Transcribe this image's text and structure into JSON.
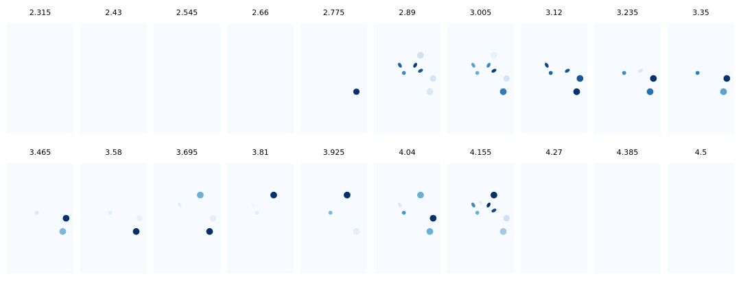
{
  "chart_data": {
    "type": "scatter",
    "colormap": "Blues",
    "background_color": "#f7fbff",
    "xlim": [
      0,
      1
    ],
    "ylim": [
      0,
      1
    ],
    "axes_visible": false,
    "grid": false,
    "layout": {
      "rows": 2,
      "cols": 10
    },
    "panels": [
      {
        "title": "2.315",
        "points": []
      },
      {
        "title": "2.43",
        "points": []
      },
      {
        "title": "2.545",
        "points": []
      },
      {
        "title": "2.66",
        "points": []
      },
      {
        "title": "2.775",
        "points": [
          {
            "shape": "circle",
            "x": 0.84,
            "y": 0.38,
            "size": 0.55,
            "c": 1.0
          }
        ]
      },
      {
        "title": "2.89",
        "points": [
          {
            "shape": "bean",
            "x": 0.39,
            "y": 0.62,
            "size": 0.45,
            "c": 0.8,
            "angle": 60
          },
          {
            "shape": "circle",
            "x": 0.45,
            "y": 0.55,
            "size": 0.25,
            "c": 0.65
          },
          {
            "shape": "bean",
            "x": 0.62,
            "y": 0.62,
            "size": 0.45,
            "c": 0.95,
            "angle": -60
          },
          {
            "shape": "bean",
            "x": 0.7,
            "y": 0.57,
            "size": 0.45,
            "c": 0.85,
            "angle": -30
          },
          {
            "shape": "circle",
            "x": 0.7,
            "y": 0.71,
            "size": 0.6,
            "c": 0.2
          },
          {
            "shape": "circle",
            "x": 0.89,
            "y": 0.5,
            "size": 0.55,
            "c": 0.18
          },
          {
            "shape": "circle",
            "x": 0.84,
            "y": 0.38,
            "size": 0.6,
            "c": 0.15
          }
        ]
      },
      {
        "title": "3.005",
        "points": [
          {
            "shape": "bean",
            "x": 0.39,
            "y": 0.62,
            "size": 0.45,
            "c": 0.55,
            "angle": 60
          },
          {
            "shape": "circle",
            "x": 0.45,
            "y": 0.55,
            "size": 0.25,
            "c": 0.5
          },
          {
            "shape": "bean",
            "x": 0.62,
            "y": 0.62,
            "size": 0.45,
            "c": 0.65,
            "angle": -60
          },
          {
            "shape": "bean",
            "x": 0.7,
            "y": 0.57,
            "size": 0.45,
            "c": 0.95,
            "angle": -30
          },
          {
            "shape": "circle",
            "x": 0.7,
            "y": 0.71,
            "size": 0.6,
            "c": 0.08
          },
          {
            "shape": "circle",
            "x": 0.89,
            "y": 0.5,
            "size": 0.55,
            "c": 0.18
          },
          {
            "shape": "circle",
            "x": 0.84,
            "y": 0.38,
            "size": 0.6,
            "c": 0.7
          }
        ]
      },
      {
        "title": "3.12",
        "points": [
          {
            "shape": "bean",
            "x": 0.39,
            "y": 0.62,
            "size": 0.45,
            "c": 0.92,
            "angle": 60
          },
          {
            "shape": "circle",
            "x": 0.45,
            "y": 0.55,
            "size": 0.25,
            "c": 0.8
          },
          {
            "shape": "bean",
            "x": 0.7,
            "y": 0.57,
            "size": 0.45,
            "c": 0.85,
            "angle": -30
          },
          {
            "shape": "circle",
            "x": 0.89,
            "y": 0.5,
            "size": 0.6,
            "c": 0.85
          },
          {
            "shape": "circle",
            "x": 0.84,
            "y": 0.38,
            "size": 0.6,
            "c": 1.0
          }
        ]
      },
      {
        "title": "3.235",
        "points": [
          {
            "shape": "circle",
            "x": 0.45,
            "y": 0.55,
            "size": 0.25,
            "c": 0.65
          },
          {
            "shape": "bean",
            "x": 0.7,
            "y": 0.57,
            "size": 0.45,
            "c": 0.15,
            "angle": -30
          },
          {
            "shape": "circle",
            "x": 0.89,
            "y": 0.5,
            "size": 0.6,
            "c": 1.0
          },
          {
            "shape": "circle",
            "x": 0.84,
            "y": 0.38,
            "size": 0.6,
            "c": 0.75
          }
        ]
      },
      {
        "title": "3.35",
        "points": [
          {
            "shape": "circle",
            "x": 0.45,
            "y": 0.55,
            "size": 0.25,
            "c": 0.7
          },
          {
            "shape": "circle",
            "x": 0.89,
            "y": 0.5,
            "size": 0.6,
            "c": 1.0
          },
          {
            "shape": "circle",
            "x": 0.84,
            "y": 0.38,
            "size": 0.6,
            "c": 0.55
          }
        ]
      },
      {
        "title": "3.465",
        "points": [
          {
            "shape": "circle",
            "x": 0.45,
            "y": 0.55,
            "size": 0.25,
            "c": 0.15
          },
          {
            "shape": "circle",
            "x": 0.89,
            "y": 0.5,
            "size": 0.6,
            "c": 1.0
          },
          {
            "shape": "circle",
            "x": 0.84,
            "y": 0.38,
            "size": 0.6,
            "c": 0.45
          }
        ]
      },
      {
        "title": "3.58",
        "points": [
          {
            "shape": "circle",
            "x": 0.45,
            "y": 0.55,
            "size": 0.25,
            "c": 0.1
          },
          {
            "shape": "circle",
            "x": 0.89,
            "y": 0.5,
            "size": 0.55,
            "c": 0.08
          },
          {
            "shape": "circle",
            "x": 0.84,
            "y": 0.38,
            "size": 0.6,
            "c": 1.0
          }
        ]
      },
      {
        "title": "3.695",
        "points": [
          {
            "shape": "bean",
            "x": 0.39,
            "y": 0.62,
            "size": 0.45,
            "c": 0.1,
            "angle": 60
          },
          {
            "shape": "circle",
            "x": 0.7,
            "y": 0.71,
            "size": 0.6,
            "c": 0.5
          },
          {
            "shape": "circle",
            "x": 0.89,
            "y": 0.5,
            "size": 0.55,
            "c": 0.1
          },
          {
            "shape": "circle",
            "x": 0.84,
            "y": 0.38,
            "size": 0.6,
            "c": 1.0
          }
        ]
      },
      {
        "title": "3.81",
        "points": [
          {
            "shape": "bean",
            "x": 0.39,
            "y": 0.62,
            "size": 0.45,
            "c": 0.03,
            "angle": 60
          },
          {
            "shape": "circle",
            "x": 0.45,
            "y": 0.55,
            "size": 0.25,
            "c": 0.1
          },
          {
            "shape": "circle",
            "x": 0.7,
            "y": 0.71,
            "size": 0.6,
            "c": 1.0
          }
        ]
      },
      {
        "title": "3.925",
        "points": [
          {
            "shape": "circle",
            "x": 0.45,
            "y": 0.55,
            "size": 0.25,
            "c": 0.45
          },
          {
            "shape": "circle",
            "x": 0.7,
            "y": 0.71,
            "size": 0.6,
            "c": 1.0
          },
          {
            "shape": "circle",
            "x": 0.84,
            "y": 0.38,
            "size": 0.6,
            "c": 0.1
          }
        ]
      },
      {
        "title": "4.04",
        "points": [
          {
            "shape": "bean",
            "x": 0.39,
            "y": 0.62,
            "size": 0.45,
            "c": 0.15,
            "angle": 60
          },
          {
            "shape": "circle",
            "x": 0.45,
            "y": 0.55,
            "size": 0.25,
            "c": 0.6
          },
          {
            "shape": "circle",
            "x": 0.7,
            "y": 0.71,
            "size": 0.6,
            "c": 0.5
          },
          {
            "shape": "circle",
            "x": 0.89,
            "y": 0.5,
            "size": 0.6,
            "c": 1.0
          },
          {
            "shape": "circle",
            "x": 0.84,
            "y": 0.38,
            "size": 0.6,
            "c": 0.5
          }
        ]
      },
      {
        "title": "4.155",
        "points": [
          {
            "shape": "bean",
            "x": 0.39,
            "y": 0.62,
            "size": 0.45,
            "c": 0.65,
            "angle": 60
          },
          {
            "shape": "circle",
            "x": 0.45,
            "y": 0.55,
            "size": 0.25,
            "c": 0.5
          },
          {
            "shape": "bean",
            "x": 0.5,
            "y": 0.64,
            "size": 0.4,
            "c": 0.1,
            "angle": 60
          },
          {
            "shape": "bean",
            "x": 0.62,
            "y": 0.62,
            "size": 0.45,
            "c": 1.0,
            "angle": -60
          },
          {
            "shape": "bean",
            "x": 0.7,
            "y": 0.57,
            "size": 0.45,
            "c": 0.9,
            "angle": -30
          },
          {
            "shape": "circle",
            "x": 0.7,
            "y": 0.71,
            "size": 0.6,
            "c": 1.0
          },
          {
            "shape": "circle",
            "x": 0.89,
            "y": 0.5,
            "size": 0.55,
            "c": 0.2
          },
          {
            "shape": "circle",
            "x": 0.84,
            "y": 0.38,
            "size": 0.6,
            "c": 0.35
          }
        ]
      },
      {
        "title": "4.27",
        "points": []
      },
      {
        "title": "4.385",
        "points": []
      },
      {
        "title": "4.5",
        "points": []
      }
    ]
  }
}
